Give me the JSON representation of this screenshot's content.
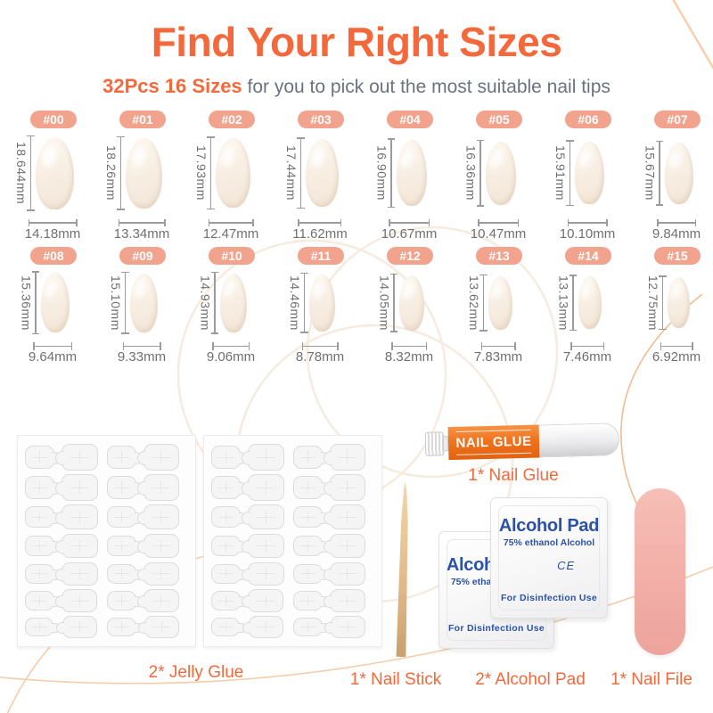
{
  "header": {
    "title": "Find Your Right Sizes",
    "subtitle_highlight": "32Pcs 16 Sizes",
    "subtitle_rest": " for you to pick out the most suitable nail tips"
  },
  "sizes": [
    {
      "id": "#00",
      "height": "18.644mm",
      "width": "14.18mm"
    },
    {
      "id": "#01",
      "height": "18.26mm",
      "width": "13.34mm"
    },
    {
      "id": "#02",
      "height": "17.93mm",
      "width": "12.47mm"
    },
    {
      "id": "#03",
      "height": "17.44mm",
      "width": "11.62mm"
    },
    {
      "id": "#04",
      "height": "16.90mm",
      "width": "10.67mm"
    },
    {
      "id": "#05",
      "height": "16.36mm",
      "width": "10.47mm"
    },
    {
      "id": "#06",
      "height": "15.91mm",
      "width": "10.10mm"
    },
    {
      "id": "#07",
      "height": "15.67mm",
      "width": "9.84mm"
    },
    {
      "id": "#08",
      "height": "15.36mm",
      "width": "9.64mm"
    },
    {
      "id": "#09",
      "height": "15.10mm",
      "width": "9.33mm"
    },
    {
      "id": "#10",
      "height": "14.93mm",
      "width": "9.06mm"
    },
    {
      "id": "#11",
      "height": "14.46mm",
      "width": "8.78mm"
    },
    {
      "id": "#12",
      "height": "14.05mm",
      "width": "8.32mm"
    },
    {
      "id": "#13",
      "height": "13.62mm",
      "width": "7.83mm"
    },
    {
      "id": "#14",
      "height": "13.13mm",
      "width": "7.46mm"
    },
    {
      "id": "#15",
      "height": "12.75mm",
      "width": "6.92mm"
    }
  ],
  "kit": {
    "jelly_glue_label": "2* Jelly Glue",
    "nail_glue_label": "1* Nail Glue",
    "nail_stick_label": "1* Nail Stick",
    "alcohol_pad_label": "2* Alcohol Pad",
    "nail_file_label": "1* Nail File",
    "glue_tube_text": "NAIL GLUE",
    "alcohol_pad": {
      "title": "Alcohol Pad",
      "subtitle": "75% ethanol Alcohol",
      "ce_mark": "CE",
      "bottom_text": "For Disinfection Use"
    }
  },
  "colors": {
    "accent": "#F4693B",
    "badge": "#F2A38D",
    "measure_text": "#6F6F6F",
    "pad_blue": "#2B52A8",
    "glue_orange": "#F0731E",
    "file_pink": "#F2AFA9",
    "nail_ivory": "#F8EFE4"
  }
}
